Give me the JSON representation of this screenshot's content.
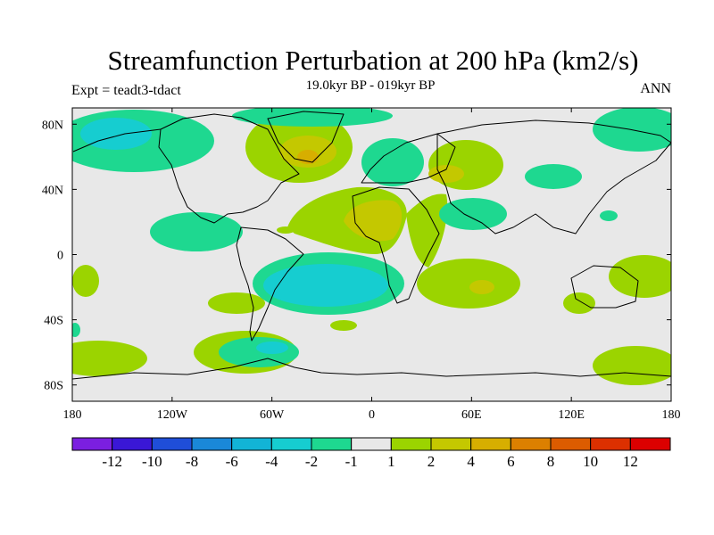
{
  "title": "Streamfunction Perturbation at 200 hPa (km2/s)",
  "subtitle": "19.0kyr BP - 019kyr BP",
  "left_label": "Expt = teadt3-tdact",
  "right_label": "ANN",
  "map": {
    "projection": "cylindrical-equidistant",
    "lon_range": [
      -180,
      180
    ],
    "lat_range": [
      -90,
      90
    ],
    "background_color": "#e8e8e8",
    "lon_ticks": [
      {
        "value": -180,
        "label": "180"
      },
      {
        "value": -120,
        "label": "120W"
      },
      {
        "value": -60,
        "label": "60W"
      },
      {
        "value": 0,
        "label": "0"
      },
      {
        "value": 60,
        "label": "60E"
      },
      {
        "value": 120,
        "label": "120E"
      },
      {
        "value": 180,
        "label": "180"
      }
    ],
    "lat_ticks": [
      {
        "value": 80,
        "label": "80N"
      },
      {
        "value": 40,
        "label": "40N"
      },
      {
        "value": 0,
        "label": "0"
      },
      {
        "value": -40,
        "label": "40S"
      },
      {
        "value": -80,
        "label": "80S"
      }
    ]
  },
  "colorbar": {
    "colors": [
      "#7b1fe0",
      "#3a17d6",
      "#1f4ed8",
      "#1a88d8",
      "#12b4d6",
      "#16cdd0",
      "#1ed890",
      "#e8e8e8",
      "#9bd400",
      "#c4c800",
      "#d7ae00",
      "#dc8000",
      "#dc5c00",
      "#dc3000",
      "#dc0000"
    ],
    "labels": [
      "-12",
      "-10",
      "-8",
      "-6",
      "-4",
      "-2",
      "-1",
      "1",
      "2",
      "4",
      "6",
      "8",
      "10",
      "12"
    ]
  }
}
